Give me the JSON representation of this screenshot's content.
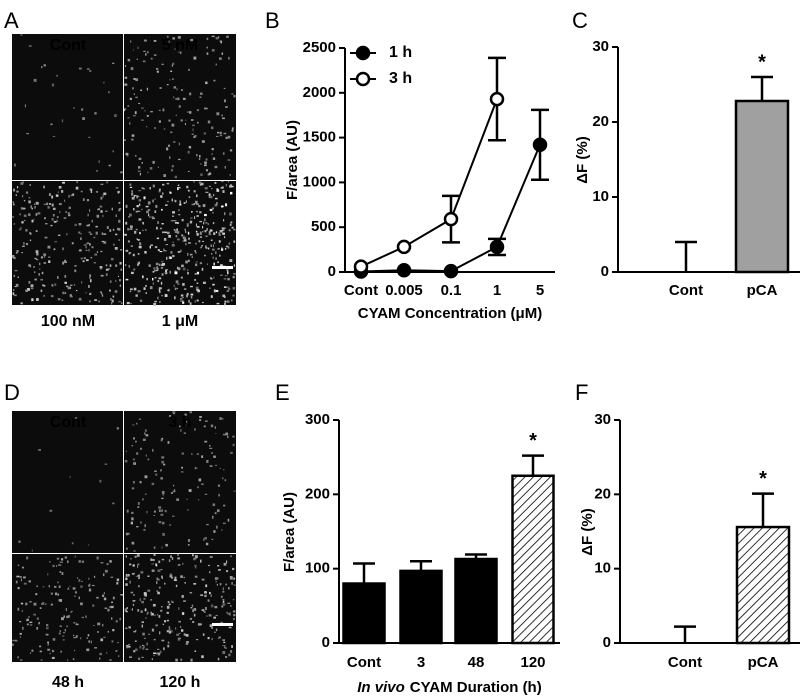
{
  "panels": [
    {
      "panel": "A",
      "labels": [
        "Cont",
        "5 nM",
        "100 nM",
        "1 μM"
      ]
    },
    {
      "panel": "D",
      "labels": [
        "Cont",
        "3 h",
        "48 h",
        "120 h"
      ]
    }
  ],
  "chart_data": [
    {
      "type": "line",
      "panel": "B",
      "ylabel": "F/area (AU)",
      "xlabel": [
        "CYAM Concentration (μM)"
      ],
      "categories": [
        "Cont",
        "0.005",
        "0.1",
        "1",
        "5"
      ],
      "series": [
        {
          "name": "1 h",
          "color": "#000000",
          "marker": "filled",
          "values": [
            5,
            20,
            10,
            280,
            1420
          ],
          "errors": [
            null,
            null,
            null,
            90,
            390
          ]
        },
        {
          "name": "3 h",
          "color": "#000000",
          "marker": "open",
          "values": [
            60,
            280,
            590,
            1930,
            null
          ],
          "errors": [
            null,
            null,
            260,
            460,
            null
          ]
        }
      ],
      "ylim": [
        0,
        2500
      ],
      "yticks": [
        0,
        500,
        1000,
        1500,
        2000,
        2500
      ],
      "legend": "upper-left"
    },
    {
      "type": "bar",
      "panel": "C",
      "ylabel": "ΔF (%)",
      "categories": [
        "Cont",
        "pCA"
      ],
      "values": [
        0,
        22.8
      ],
      "errors": [
        4,
        3.2
      ],
      "colors": [
        "#a0a0a0",
        "#a0a0a0"
      ],
      "hatch": [
        false,
        false
      ],
      "significance": [
        null,
        "*"
      ],
      "ylim": [
        0,
        30
      ],
      "yticks": [
        0,
        10,
        20,
        30
      ]
    },
    {
      "type": "bar",
      "panel": "E",
      "ylabel": "F/area (AU)",
      "xlabel": [
        "In vivo",
        "CYAM Duration (h)"
      ],
      "categories": [
        "Cont",
        "3",
        "48",
        "120"
      ],
      "values": [
        80,
        97,
        113,
        225
      ],
      "errors": [
        27,
        13,
        6,
        27
      ],
      "colors": [
        "#000000",
        "#000000",
        "#000000",
        "#ffffff"
      ],
      "hatch": [
        false,
        false,
        false,
        true
      ],
      "significance": [
        null,
        null,
        null,
        "*"
      ],
      "ylim": [
        0,
        300
      ],
      "yticks": [
        0,
        100,
        200,
        300
      ]
    },
    {
      "type": "bar",
      "panel": "F",
      "ylabel": "ΔF (%)",
      "categories": [
        "Cont",
        "pCA"
      ],
      "values": [
        0,
        15.6
      ],
      "errors": [
        2.2,
        4.5
      ],
      "colors": [
        "#ffffff",
        "#ffffff"
      ],
      "hatch": [
        false,
        true
      ],
      "significance": [
        null,
        "*"
      ],
      "ylim": [
        0,
        30
      ],
      "yticks": [
        0,
        10,
        20,
        30
      ]
    }
  ]
}
